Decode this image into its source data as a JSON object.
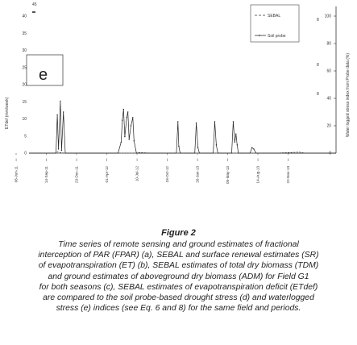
{
  "figure": {
    "panel_letter": "e",
    "stray_left_top_label": "45",
    "left_axis_label": "ETdef (mm/week)",
    "right_axis_label": "Water logged stress index from Probe data (%)",
    "left_ticks": [
      "40",
      "35",
      "30",
      "25",
      "20",
      "15",
      "10",
      "5",
      "0"
    ],
    "right_ticks": [
      "100",
      "80",
      "60",
      "40",
      "20",
      "0"
    ],
    "top_ticks": [
      "8",
      "8",
      "8"
    ],
    "x_ticks": [
      "06-Jun-11",
      "14-Sep-11",
      "23-Dec-11",
      "01-Apr-12",
      "10-Jul-12",
      "18-Oct-12",
      "26-Jan-13",
      "05-May-13",
      "14-Aug-13",
      "22-Nov-13"
    ],
    "x_tick_dots": [
      "i",
      "i",
      "i",
      "i",
      "i",
      "i",
      "i",
      "i",
      "i",
      "i"
    ],
    "legend": {
      "sebal": "SEBAL",
      "soil": "Soil probe"
    }
  },
  "chart_data": {
    "type": "line",
    "title": "",
    "xlabel": "",
    "ylabel": "ETdef (mm/week)",
    "y2label": "Water logged stress index from Probe data (%)",
    "ylim": [
      0,
      40
    ],
    "y2lim": [
      0,
      100
    ],
    "x": [
      "06-Jun-11",
      "14-Sep-11",
      "23-Dec-11",
      "01-Apr-12",
      "10-Jul-12",
      "18-Oct-12",
      "26-Jan-13",
      "05-May-13",
      "14-Aug-13",
      "22-Nov-13"
    ],
    "series": [
      {
        "name": "SEBAL",
        "axis": "left",
        "style": "dashed",
        "points": [
          [
            0,
            0
          ],
          [
            85,
            0
          ],
          [
            92,
            0.4
          ],
          [
            100,
            0.2
          ],
          [
            115,
            0
          ],
          [
            300,
            0
          ],
          [
            345,
            0
          ],
          [
            360,
            0.2
          ],
          [
            400,
            0
          ],
          [
            560,
            0
          ],
          [
            600,
            0
          ],
          [
            650,
            0
          ],
          [
            700,
            0
          ],
          [
            750,
            0
          ],
          [
            800,
            0
          ],
          [
            880,
            0.3
          ],
          [
            900,
            0
          ]
        ]
      },
      {
        "name": "Soil probe",
        "axis": "right",
        "style": "solid-with-markers",
        "points": [
          [
            0,
            0
          ],
          [
            88,
            0
          ],
          [
            92,
            28
          ],
          [
            96,
            3
          ],
          [
            102,
            38
          ],
          [
            106,
            2
          ],
          [
            112,
            30
          ],
          [
            118,
            0
          ],
          [
            125,
            0
          ],
          [
            290,
            0
          ],
          [
            300,
            8
          ],
          [
            304,
            24
          ],
          [
            308,
            32
          ],
          [
            312,
            12
          ],
          [
            318,
            26
          ],
          [
            322,
            30
          ],
          [
            326,
            10
          ],
          [
            332,
            20
          ],
          [
            338,
            26
          ],
          [
            342,
            9
          ],
          [
            350,
            0
          ],
          [
            480,
            0
          ],
          [
            485,
            23
          ],
          [
            488,
            5
          ],
          [
            492,
            0
          ],
          [
            540,
            0
          ],
          [
            545,
            22
          ],
          [
            550,
            4
          ],
          [
            555,
            0
          ],
          [
            600,
            0
          ],
          [
            605,
            23
          ],
          [
            610,
            6
          ],
          [
            615,
            0
          ],
          [
            660,
            0
          ],
          [
            665,
            23
          ],
          [
            670,
            8
          ],
          [
            674,
            14
          ],
          [
            678,
            6
          ],
          [
            682,
            0
          ],
          [
            720,
            0
          ],
          [
            726,
            4
          ],
          [
            732,
            3
          ],
          [
            740,
            0
          ],
          [
            1000,
            0
          ]
        ]
      }
    ]
  },
  "caption": {
    "title": "Figure 2",
    "lines": [
      "Time series of remote sensing and ground estimates of fractional",
      "interception of PAR (FPAR) (a), SEBAL and surface renewal  estimates (SR)",
      "of evapotranspiration (ET) (b), SEBAL estimates of total dry biomass (TDM)",
      "and ground estimates of aboveground dry biomass (ADM) for Field G1",
      "for both seasons (c), SEBAL estimates of evapotranspiration deficit (ETdef)",
      "are compared to the soil probe-based drought stress (d) and waterlogged",
      "stress (e) indices (see Eq. 6 and 8) for the same field and periods."
    ]
  }
}
